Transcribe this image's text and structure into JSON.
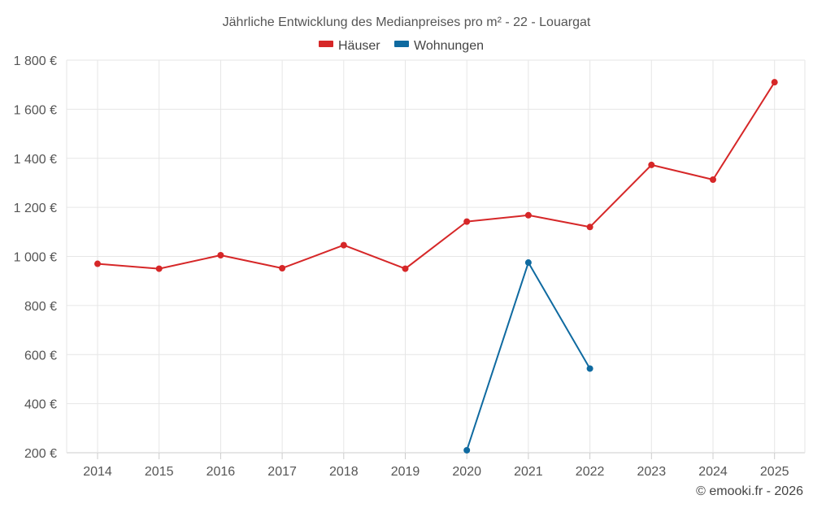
{
  "chart_data": {
    "type": "line",
    "title": "Jährliche Entwicklung des Medianpreises pro m² - 22 - Louargat",
    "categories": [
      "2014",
      "2015",
      "2016",
      "2017",
      "2018",
      "2019",
      "2020",
      "2021",
      "2022",
      "2023",
      "2024",
      "2025"
    ],
    "series": [
      {
        "name": "Häuser",
        "color": "#d62728",
        "values": [
          970,
          950,
          1005,
          952,
          1046,
          950,
          1142,
          1168,
          1120,
          1373,
          1313,
          1710
        ]
      },
      {
        "name": "Wohnungen",
        "color": "#0f6aa0",
        "values": [
          null,
          null,
          null,
          null,
          null,
          null,
          210,
          975,
          543,
          null,
          null,
          null
        ]
      }
    ],
    "ylim": [
      200,
      1800
    ],
    "yticks": [
      200,
      400,
      600,
      800,
      1000,
      1200,
      1400,
      1600,
      1800
    ],
    "ytick_labels": [
      "200 €",
      "400 €",
      "600 €",
      "800 €",
      "1 000 €",
      "1 200 €",
      "1 400 €",
      "1 600 €",
      "1 800 €"
    ],
    "grid": true,
    "legend_position": "top-center",
    "xlabel": "",
    "ylabel": ""
  },
  "credit": "© emooki.fr - 2026"
}
